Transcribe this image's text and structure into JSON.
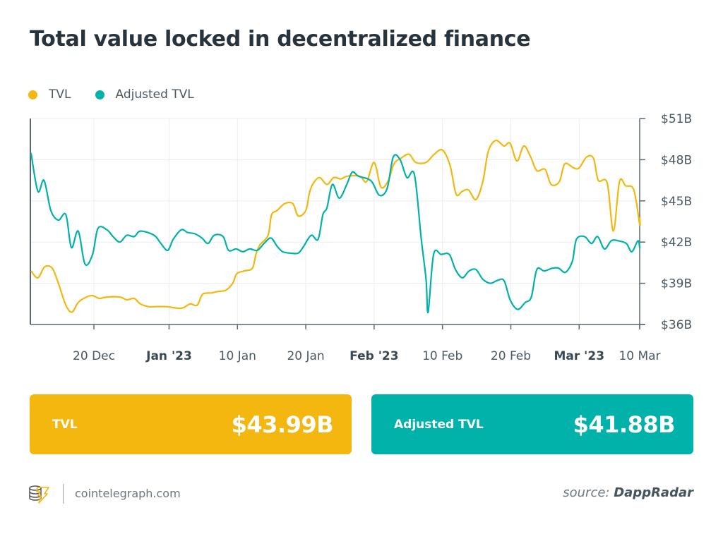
{
  "title": "Total value locked in decentralized finance",
  "colors": {
    "tvl": "#f4b70f",
    "adjusted_tvl": "#00b2a9",
    "text": "#27333d",
    "axis": "#5b6873",
    "grid": "#ececec"
  },
  "legend": [
    {
      "label": "TVL",
      "color": "#f4b70f"
    },
    {
      "label": "Adjusted TVL",
      "color": "#00b2a9"
    }
  ],
  "cards": [
    {
      "label": "TVL",
      "value": "$43.99B",
      "color": "#f4b70f"
    },
    {
      "label": "Adjusted TVL",
      "value": "$41.88B",
      "color": "#00b2a9"
    }
  ],
  "footer": {
    "site": "cointelegraph.com",
    "source_prefix": "source:",
    "source_name": "DappRadar"
  },
  "chart_data": {
    "type": "line",
    "title": "Total value locked in decentralized finance",
    "x_unit": "days since 30 Nov 2022 (20 Dec = 20)",
    "x_range": [
      10.7,
      99.9
    ],
    "ylim": [
      36,
      51
    ],
    "y_unit": "USD billions",
    "grid": true,
    "legend_position": "top-left",
    "x_ticks": [
      {
        "x": 20,
        "label": "20 Dec",
        "bold": false
      },
      {
        "x": 31,
        "label": "Jan '23",
        "bold": true
      },
      {
        "x": 41,
        "label": "10 Jan",
        "bold": false
      },
      {
        "x": 51,
        "label": "20 Jan",
        "bold": false
      },
      {
        "x": 61,
        "label": "Feb '23",
        "bold": true
      },
      {
        "x": 71,
        "label": "10 Feb",
        "bold": false
      },
      {
        "x": 81,
        "label": "20 Feb",
        "bold": false
      },
      {
        "x": 91,
        "label": "Mar '23",
        "bold": true
      },
      {
        "x": 100,
        "label": "10 Mar",
        "bold": false
      }
    ],
    "y_ticks": [
      {
        "y": 36,
        "label": "$36B"
      },
      {
        "y": 39,
        "label": "$39B"
      },
      {
        "y": 42,
        "label": "$42B"
      },
      {
        "y": 45,
        "label": "$45B"
      },
      {
        "y": 48,
        "label": "$48B"
      },
      {
        "y": 51,
        "label": "$51B"
      }
    ],
    "series": [
      {
        "name": "TVL",
        "color": "#f4b70f",
        "points": [
          [
            10.8,
            39.9
          ],
          [
            11.8,
            39.4
          ],
          [
            12.8,
            40.2
          ],
          [
            13.9,
            40.1
          ],
          [
            14.8,
            39.0
          ],
          [
            15.9,
            37.4
          ],
          [
            16.8,
            36.9
          ],
          [
            17.7,
            37.6
          ],
          [
            18.9,
            38.0
          ],
          [
            19.8,
            38.1
          ],
          [
            20.8,
            37.9
          ],
          [
            21.9,
            38.0
          ],
          [
            23.8,
            38.0
          ],
          [
            24.8,
            37.8
          ],
          [
            25.9,
            37.9
          ],
          [
            26.8,
            37.5
          ],
          [
            28.0,
            37.3
          ],
          [
            29.0,
            37.3
          ],
          [
            30.6,
            37.3
          ],
          [
            32.0,
            37.2
          ],
          [
            33.0,
            37.2
          ],
          [
            34.1,
            37.5
          ],
          [
            35.1,
            37.4
          ],
          [
            35.9,
            38.2
          ],
          [
            37.2,
            38.3
          ],
          [
            38.1,
            38.4
          ],
          [
            39.3,
            38.5
          ],
          [
            40.3,
            39.0
          ],
          [
            40.9,
            39.7
          ],
          [
            42.0,
            39.9
          ],
          [
            43.2,
            40.1
          ],
          [
            43.7,
            41.1
          ],
          [
            44.3,
            41.8
          ],
          [
            45.1,
            42.2
          ],
          [
            45.6,
            42.7
          ],
          [
            46.0,
            44.0
          ],
          [
            46.8,
            44.3
          ],
          [
            47.9,
            44.8
          ],
          [
            49.1,
            44.8
          ],
          [
            49.9,
            43.9
          ],
          [
            51.0,
            44.3
          ],
          [
            51.5,
            45.5
          ],
          [
            52.0,
            46.2
          ],
          [
            53.0,
            46.7
          ],
          [
            54.1,
            46.2
          ],
          [
            55.1,
            46.7
          ],
          [
            56.1,
            46.6
          ],
          [
            57.1,
            46.8
          ],
          [
            58.9,
            46.8
          ],
          [
            59.9,
            46.4
          ],
          [
            61.0,
            47.8
          ],
          [
            62.0,
            46.0
          ],
          [
            63.1,
            46.5
          ],
          [
            63.9,
            47.7
          ],
          [
            64.9,
            48.1
          ],
          [
            66.1,
            48.4
          ],
          [
            67.1,
            47.8
          ],
          [
            68.6,
            47.8
          ],
          [
            69.8,
            48.4
          ],
          [
            71.0,
            48.7
          ],
          [
            72.1,
            47.6
          ],
          [
            73.0,
            45.5
          ],
          [
            73.9,
            45.7
          ],
          [
            74.8,
            45.8
          ],
          [
            75.9,
            45.1
          ],
          [
            76.9,
            46.4
          ],
          [
            77.7,
            48.6
          ],
          [
            78.8,
            49.4
          ],
          [
            80.0,
            49.0
          ],
          [
            80.9,
            49.2
          ],
          [
            81.9,
            47.9
          ],
          [
            82.9,
            49.0
          ],
          [
            83.9,
            48.2
          ],
          [
            84.8,
            47.2
          ],
          [
            86.0,
            47.3
          ],
          [
            86.9,
            46.2
          ],
          [
            88.1,
            46.4
          ],
          [
            88.9,
            47.7
          ],
          [
            90.2,
            47.4
          ],
          [
            91.0,
            47.4
          ],
          [
            92.1,
            48.2
          ],
          [
            93.1,
            48.1
          ],
          [
            93.8,
            46.5
          ],
          [
            95.1,
            46.3
          ],
          [
            96.0,
            42.8
          ],
          [
            96.9,
            46.4
          ],
          [
            97.8,
            46.1
          ],
          [
            99.0,
            45.8
          ],
          [
            100.0,
            43.3
          ],
          [
            100.9,
            43.8
          ]
        ]
      },
      {
        "name": "Adjusted TVL",
        "color": "#00b2a9",
        "points": [
          [
            10.8,
            48.5
          ],
          [
            11.8,
            45.7
          ],
          [
            12.7,
            46.5
          ],
          [
            13.7,
            44.3
          ],
          [
            14.8,
            43.6
          ],
          [
            15.9,
            44.0
          ],
          [
            16.7,
            41.6
          ],
          [
            17.7,
            42.8
          ],
          [
            18.7,
            40.4
          ],
          [
            19.8,
            41.1
          ],
          [
            20.6,
            43.0
          ],
          [
            21.9,
            42.9
          ],
          [
            22.8,
            42.4
          ],
          [
            23.8,
            42.0
          ],
          [
            24.8,
            42.5
          ],
          [
            25.9,
            42.4
          ],
          [
            26.8,
            42.8
          ],
          [
            28.8,
            42.5
          ],
          [
            29.8,
            41.9
          ],
          [
            30.8,
            41.4
          ],
          [
            31.6,
            42.2
          ],
          [
            32.8,
            42.9
          ],
          [
            33.7,
            42.7
          ],
          [
            34.8,
            42.6
          ],
          [
            35.8,
            42.3
          ],
          [
            36.7,
            41.9
          ],
          [
            37.6,
            42.5
          ],
          [
            38.9,
            42.4
          ],
          [
            39.7,
            41.4
          ],
          [
            40.8,
            41.5
          ],
          [
            41.8,
            41.3
          ],
          [
            42.8,
            41.5
          ],
          [
            43.9,
            41.4
          ],
          [
            44.9,
            41.9
          ],
          [
            45.9,
            42.3
          ],
          [
            46.8,
            41.7
          ],
          [
            47.6,
            41.3
          ],
          [
            48.7,
            41.2
          ],
          [
            49.9,
            41.2
          ],
          [
            50.7,
            41.7
          ],
          [
            51.8,
            42.5
          ],
          [
            52.8,
            42.2
          ],
          [
            53.5,
            44.0
          ],
          [
            54.1,
            44.5
          ],
          [
            54.9,
            46.2
          ],
          [
            55.9,
            45.2
          ],
          [
            57.0,
            46.2
          ],
          [
            57.8,
            47.1
          ],
          [
            58.7,
            46.8
          ],
          [
            60.1,
            46.6
          ],
          [
            60.8,
            46.3
          ],
          [
            61.8,
            45.4
          ],
          [
            62.9,
            45.9
          ],
          [
            63.8,
            48.2
          ],
          [
            64.8,
            48.0
          ],
          [
            65.8,
            46.7
          ],
          [
            66.9,
            46.9
          ],
          [
            67.9,
            42.2
          ],
          [
            68.6,
            39.3
          ],
          [
            68.9,
            36.9
          ],
          [
            69.7,
            41.1
          ],
          [
            70.8,
            41.1
          ],
          [
            72.0,
            41.1
          ],
          [
            72.9,
            40.0
          ],
          [
            73.9,
            39.4
          ],
          [
            74.9,
            39.9
          ],
          [
            75.9,
            40.0
          ],
          [
            76.9,
            39.3
          ],
          [
            78.0,
            39.0
          ],
          [
            79.0,
            39.2
          ],
          [
            80.0,
            39.2
          ],
          [
            80.9,
            37.8
          ],
          [
            82.0,
            37.1
          ],
          [
            83.1,
            37.6
          ],
          [
            84.0,
            38.0
          ],
          [
            84.8,
            40.0
          ],
          [
            85.9,
            39.9
          ],
          [
            87.1,
            40.1
          ],
          [
            88.0,
            40.1
          ],
          [
            89.0,
            39.8
          ],
          [
            90.0,
            40.6
          ],
          [
            90.6,
            42.2
          ],
          [
            91.8,
            42.4
          ],
          [
            92.8,
            41.9
          ],
          [
            93.7,
            42.4
          ],
          [
            94.7,
            41.5
          ],
          [
            95.7,
            42.1
          ],
          [
            96.7,
            42.1
          ],
          [
            97.9,
            41.9
          ],
          [
            98.7,
            41.3
          ],
          [
            99.6,
            42.1
          ],
          [
            100.7,
            41.6
          ],
          [
            101.8,
            41.7
          ]
        ]
      }
    ]
  }
}
